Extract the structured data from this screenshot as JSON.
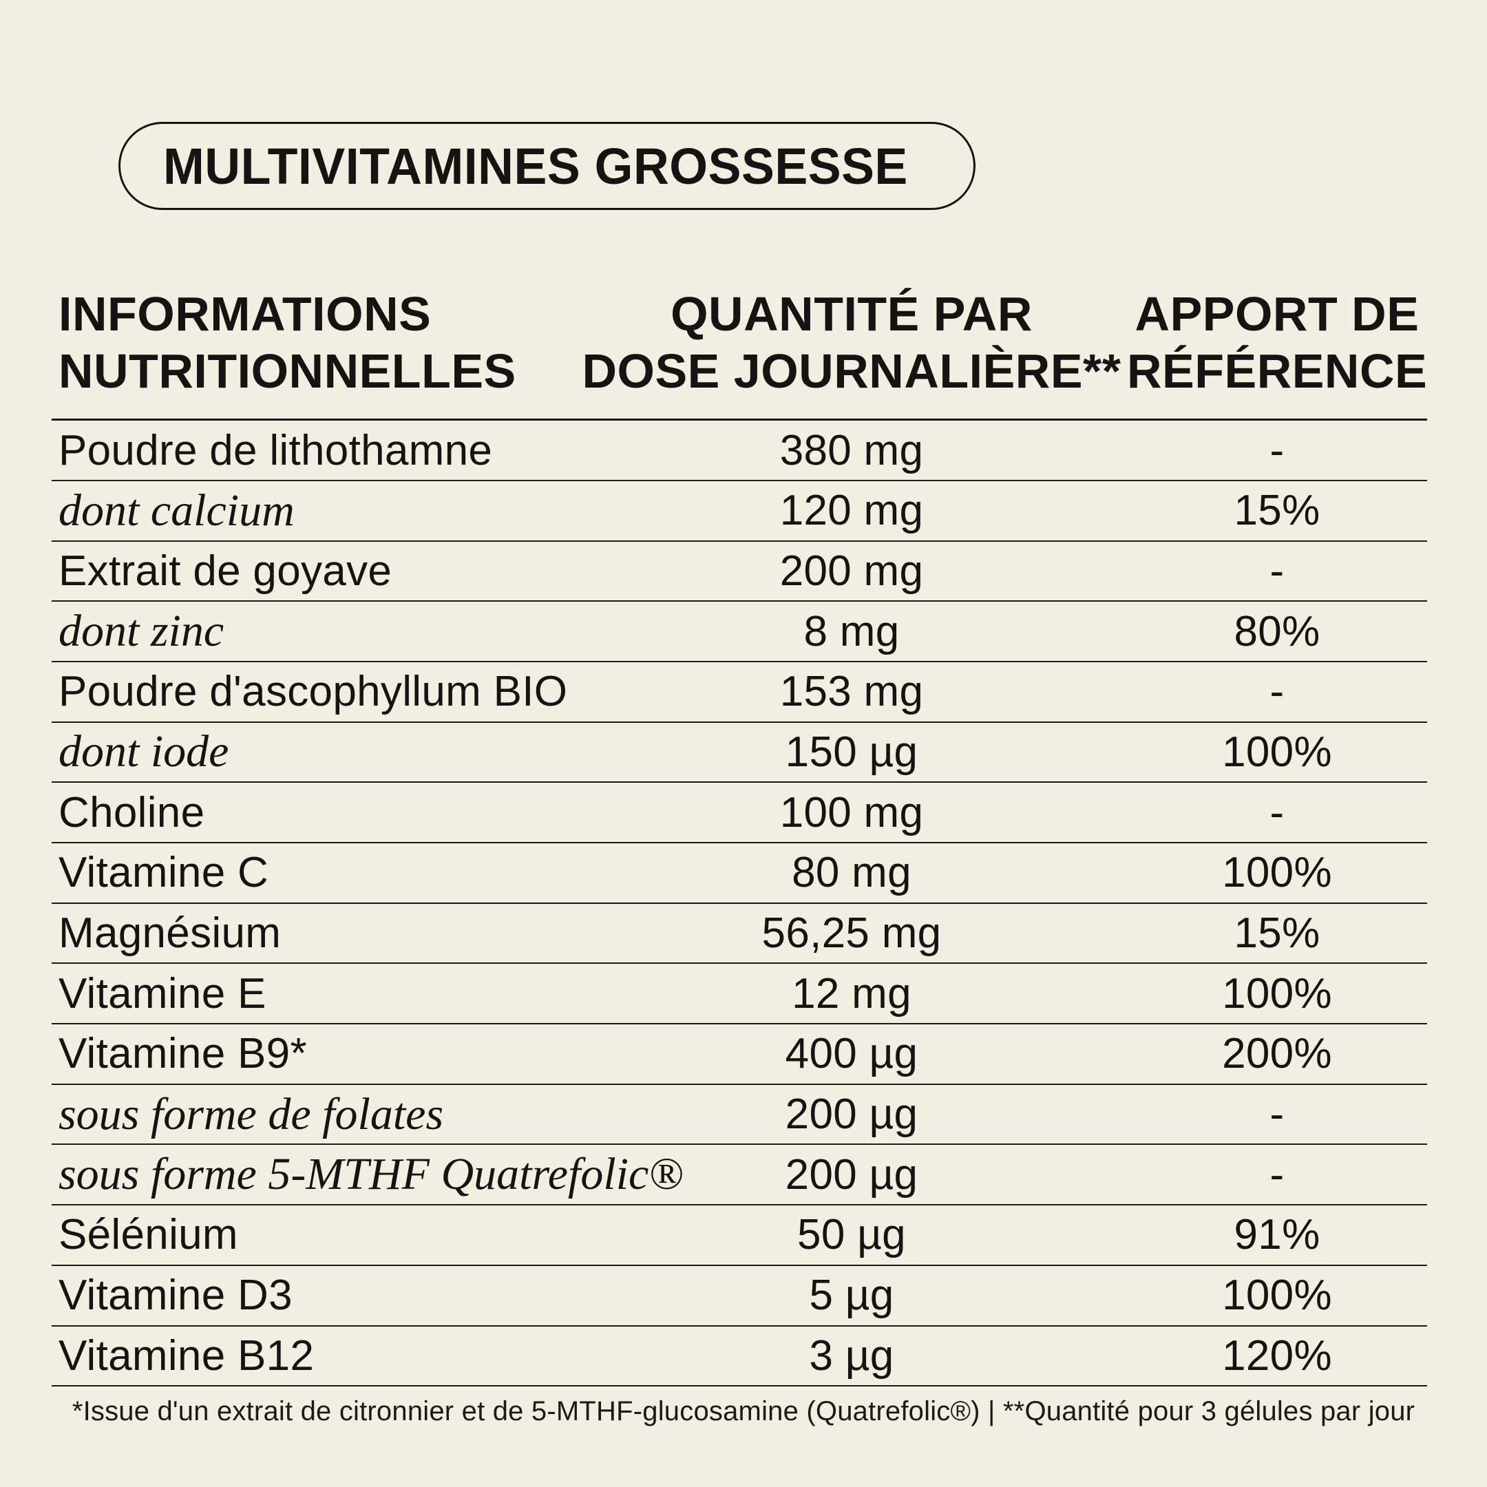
{
  "badge": {
    "title": "MULTIVITAMINES GROSSESSE"
  },
  "table": {
    "headers": [
      {
        "line1": "INFORMATIONS",
        "line2": "NUTRITIONNELLES"
      },
      {
        "line1": "QUANTITÉ PAR",
        "line2": "DOSE JOURNALIÈRE**"
      },
      {
        "line1": "APPORT DE",
        "line2": "RÉFÉRENCE"
      }
    ],
    "rows": [
      {
        "label": "Poudre de lithothamne",
        "sub": false,
        "amount": "380 mg",
        "reference": "-"
      },
      {
        "label": "dont calcium",
        "sub": true,
        "amount": "120 mg",
        "reference": "15%"
      },
      {
        "label": "Extrait de goyave",
        "sub": false,
        "amount": "200 mg",
        "reference": "-"
      },
      {
        "label": "dont zinc",
        "sub": true,
        "amount": "8 mg",
        "reference": "80%"
      },
      {
        "label": "Poudre d'ascophyllum BIO",
        "sub": false,
        "amount": "153 mg",
        "reference": "-"
      },
      {
        "label": "dont iode",
        "sub": true,
        "amount": "150 µg",
        "reference": "100%"
      },
      {
        "label": "Choline",
        "sub": false,
        "amount": "100 mg",
        "reference": "-"
      },
      {
        "label": "Vitamine C",
        "sub": false,
        "amount": "80 mg",
        "reference": "100%"
      },
      {
        "label": "Magnésium",
        "sub": false,
        "amount": "56,25 mg",
        "reference": "15%"
      },
      {
        "label": "Vitamine E",
        "sub": false,
        "amount": "12 mg",
        "reference": "100%"
      },
      {
        "label": "Vitamine B9*",
        "sub": false,
        "amount": "400 µg",
        "reference": "200%"
      },
      {
        "label": "sous forme de folates",
        "sub": true,
        "amount": "200 µg",
        "reference": "-"
      },
      {
        "label": "sous forme 5-MTHF Quatrefolic®",
        "sub": true,
        "amount": "200 µg",
        "reference": "-"
      },
      {
        "label": "Sélénium",
        "sub": false,
        "amount": "50 µg",
        "reference": "91%"
      },
      {
        "label": "Vitamine D3",
        "sub": false,
        "amount": "5 µg",
        "reference": "100%"
      },
      {
        "label": "Vitamine B12",
        "sub": false,
        "amount": "3 µg",
        "reference": "120%"
      }
    ]
  },
  "footnote": "*Issue d'un extrait de citronnier et de 5-MTHF-glucosamine (Quatrefolic®) | **Quantité pour 3 gélules par jour",
  "colors": {
    "background": "#F2EEE1",
    "ink": "#151412",
    "rule": "#1A1A19"
  }
}
